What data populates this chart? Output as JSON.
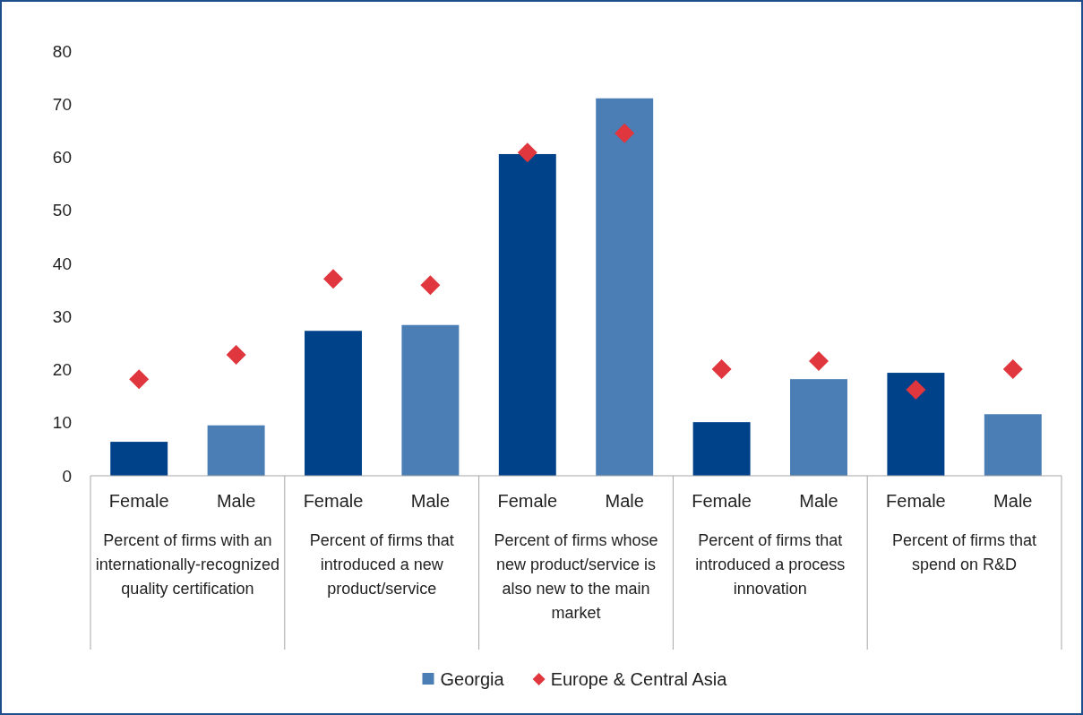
{
  "chart_data": {
    "type": "bar",
    "categories": [
      "Female",
      "Male",
      "Female",
      "Male",
      "Female",
      "Male",
      "Female",
      "Male",
      "Female",
      "Male"
    ],
    "series": [
      {
        "name": "Georgia",
        "color": "#4a7eb4",
        "colors": [
          "#00428a",
          "#4a7eb4",
          "#00428a",
          "#4a7eb4",
          "#00428a",
          "#4a7eb4",
          "#00428a",
          "#4a7eb4",
          "#00428a",
          "#4a7eb4"
        ],
        "values": [
          6.4,
          9.5,
          27.3,
          28.4,
          60.6,
          71.1,
          10.1,
          18.2,
          19.4,
          11.6
        ]
      },
      {
        "name": "Europe & Central Asia",
        "type": "scatter",
        "color": "#e0363e",
        "marker": "diamond",
        "values": [
          18.2,
          22.8,
          37.1,
          35.9,
          60.9,
          64.5,
          20.1,
          21.6,
          16.2,
          20.1
        ]
      }
    ],
    "annotations": [
      "Percent of firms with an internationally-recognized quality certification",
      "Percent of firms that introduced a new product/service",
      "Percent of firms whose new product/service is also new to the main market",
      "Percent of firms that introduced a process innovation",
      "Percent of firms that spend on R&D"
    ],
    "ylim": [
      0,
      80
    ],
    "yticks": [
      0,
      10,
      20,
      30,
      40,
      50,
      60,
      70,
      80
    ],
    "grid": false,
    "legend": "bottom"
  }
}
